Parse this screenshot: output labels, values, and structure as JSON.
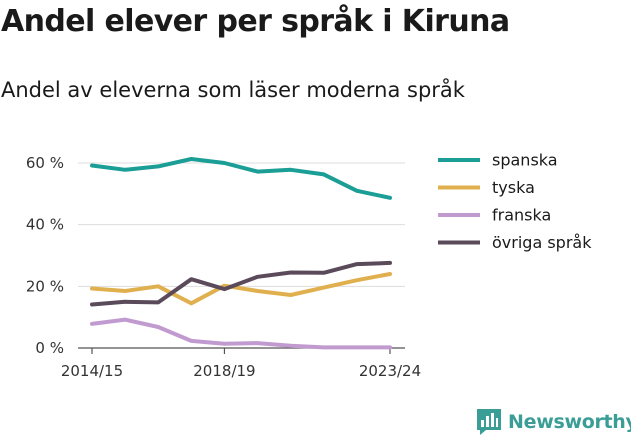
{
  "title": "Andel elever per språk i Kiruna",
  "subtitle": "Andel av eleverna som läser moderna språk",
  "brand": {
    "name": "Newsworthy",
    "icon": "newsworthy-logo-icon",
    "color": "#3a9d96"
  },
  "chart_data": {
    "type": "line",
    "title": "Andel elever per språk i Kiruna",
    "subtitle": "Andel av eleverna som läser moderna språk",
    "xlabel": "",
    "ylabel": "",
    "x": [
      "2014/15",
      "2015/16",
      "2016/17",
      "2017/18",
      "2018/19",
      "2019/20",
      "2020/21",
      "2021/22",
      "2022/23",
      "2023/24"
    ],
    "x_tick_labels": [
      "2014/15",
      "2018/19",
      "2023/24"
    ],
    "x_tick_indices": [
      0,
      4,
      9
    ],
    "ylim": [
      0,
      60
    ],
    "y_ticks": [
      0,
      20,
      40,
      60
    ],
    "y_tick_labels": [
      "0 %",
      "20 %",
      "40 %",
      "60 %"
    ],
    "grid": true,
    "legend_position": "right",
    "series": [
      {
        "name": "spanska",
        "color": "#1a9e95",
        "values": [
          59.2,
          57.8,
          58.9,
          61.3,
          60.0,
          57.2,
          57.8,
          56.3,
          51.0,
          48.7
        ]
      },
      {
        "name": "tyska",
        "color": "#e0b04f",
        "values": [
          19.3,
          18.5,
          20.0,
          14.5,
          20.2,
          18.5,
          17.2,
          19.6,
          22.0,
          24.0
        ]
      },
      {
        "name": "franska",
        "color": "#c19bd0",
        "values": [
          7.8,
          9.2,
          6.8,
          2.3,
          1.4,
          1.6,
          0.7,
          0.2,
          0.2,
          0.2
        ]
      },
      {
        "name": "övriga språk",
        "color": "#5a4a5a",
        "values": [
          14.1,
          15.0,
          14.8,
          22.3,
          19.1,
          23.1,
          24.5,
          24.4,
          27.2,
          27.6
        ]
      }
    ]
  }
}
